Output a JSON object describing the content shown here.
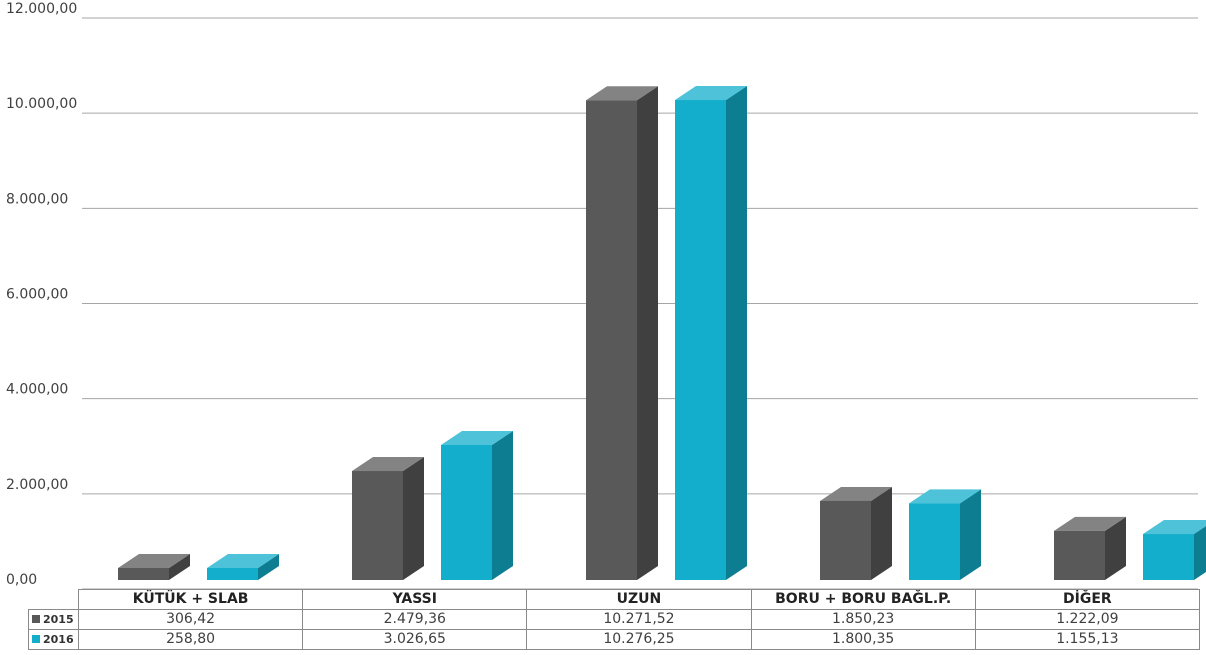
{
  "chart_data": {
    "type": "bar",
    "categories": [
      "KÜTÜK + SLAB",
      "YASSI",
      "UZUN",
      "BORU + BORU BAĞL.P.",
      "DİĞER"
    ],
    "series": [
      {
        "name": "2015",
        "color": "#595959",
        "values": [
          306.42,
          2479.36,
          10271.52,
          1850.23,
          1222.09
        ]
      },
      {
        "name": "2016",
        "color": "#12aecb",
        "values": [
          258.8,
          3026.65,
          10276.25,
          1800.35,
          1155.13
        ]
      }
    ],
    "y_ticks": [
      "0,00",
      "2.000,00",
      "4.000,00",
      "6.000,00",
      "8.000,00",
      "10.000,00",
      "12.000,00"
    ],
    "ylim": [
      0,
      12000
    ],
    "grid": true,
    "style": "3d-column",
    "data_table": {
      "headers": [
        "KÜTÜK + SLAB",
        "YASSI",
        "UZUN",
        "BORU + BORU BAĞL.P.",
        "DİĞER"
      ],
      "rows": [
        {
          "label": "2015",
          "cells": [
            "306,42",
            "2.479,36",
            "10.271,52",
            "1.850,23",
            "1.222,09"
          ]
        },
        {
          "label": "2016",
          "cells": [
            "258,80",
            "3.026,65",
            "10.276,25",
            "1.800,35",
            "1.155,13"
          ]
        }
      ]
    }
  }
}
